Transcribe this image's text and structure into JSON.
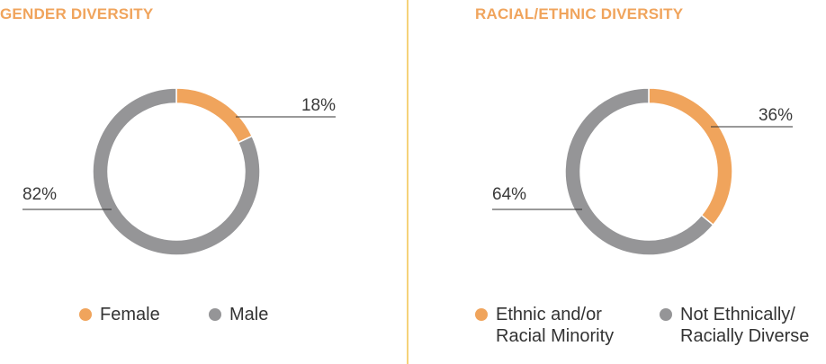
{
  "colors": {
    "accent": "#f0a45c",
    "gray": "#959597",
    "title": "#f0a45c",
    "divider": "#f5d27a",
    "text": "#333333"
  },
  "chart_data": [
    {
      "type": "pie",
      "title": "GENDER DIVERSITY",
      "slices": [
        {
          "label": "Female",
          "value": 18,
          "value_label": "18%",
          "color": "#f0a45c"
        },
        {
          "label": "Male",
          "value": 82,
          "value_label": "82%",
          "color": "#959597"
        }
      ],
      "legend": [
        "Female",
        "Male"
      ],
      "legend_placement": "bottom"
    },
    {
      "type": "pie",
      "title": "RACIAL/ETHNIC DIVERSITY",
      "slices": [
        {
          "label": "Ethnic and/or\nRacial Minority",
          "value": 36,
          "value_label": "36%",
          "color": "#f0a45c"
        },
        {
          "label": "Not Ethnically/\nRacially Diverse",
          "value": 64,
          "value_label": "64%",
          "color": "#959597"
        }
      ],
      "legend": [
        "Ethnic and/or\nRacial Minority",
        "Not Ethnically/\nRacially Diverse"
      ],
      "legend_placement": "bottom"
    }
  ]
}
